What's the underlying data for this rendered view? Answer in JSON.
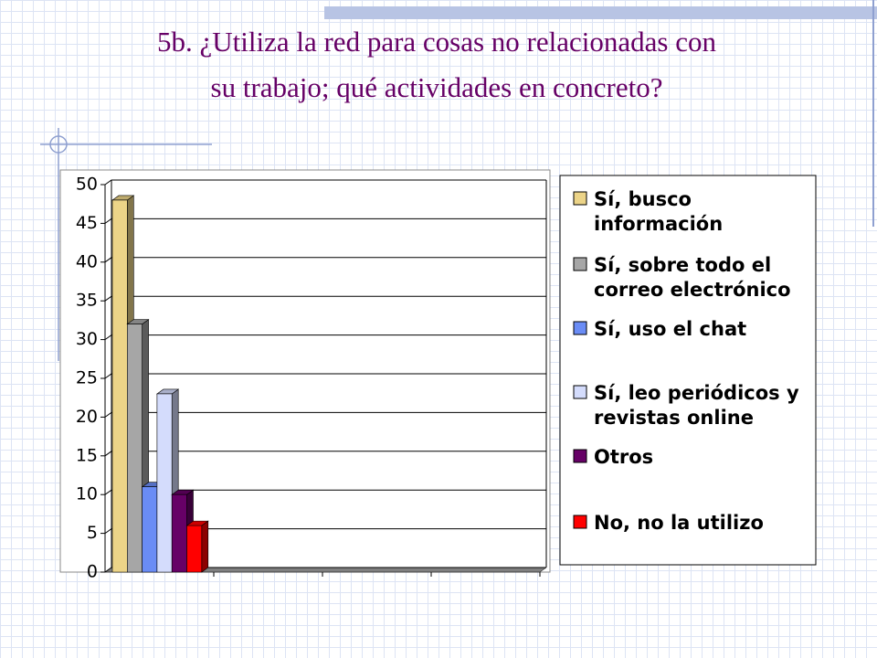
{
  "chart_data": {
    "type": "bar",
    "title": "5b. ¿Utiliza la red para cosas no relacionadas con su trabajo; qué actividades en concreto?",
    "categories": [
      null,
      null,
      null,
      null
    ],
    "series": [
      {
        "name": "Sí, busco información",
        "color": "#ecd488",
        "values": [
          48,
          null,
          null,
          null
        ]
      },
      {
        "name": "Sí, sobre todo el correo electrónico",
        "color": "#a6a6a6",
        "values": [
          32,
          null,
          null,
          null
        ]
      },
      {
        "name": "Sí, uso el chat",
        "color": "#6a8cf5",
        "values": [
          11,
          null,
          null,
          null
        ]
      },
      {
        "name": "Sí, leo periódicos y revistas online",
        "color": "#d4dcfc",
        "values": [
          23,
          null,
          null,
          null
        ]
      },
      {
        "name": "Otros",
        "color": "#660066",
        "values": [
          10,
          null,
          null,
          null
        ]
      },
      {
        "name": "No, no la utilizo",
        "color": "#ff0000",
        "values": [
          6,
          null,
          null,
          null
        ]
      }
    ],
    "ylim": [
      0,
      50
    ],
    "yticks": [
      0,
      5,
      10,
      15,
      20,
      25,
      30,
      35,
      40,
      45,
      50
    ],
    "grid": true,
    "legend": "right"
  }
}
